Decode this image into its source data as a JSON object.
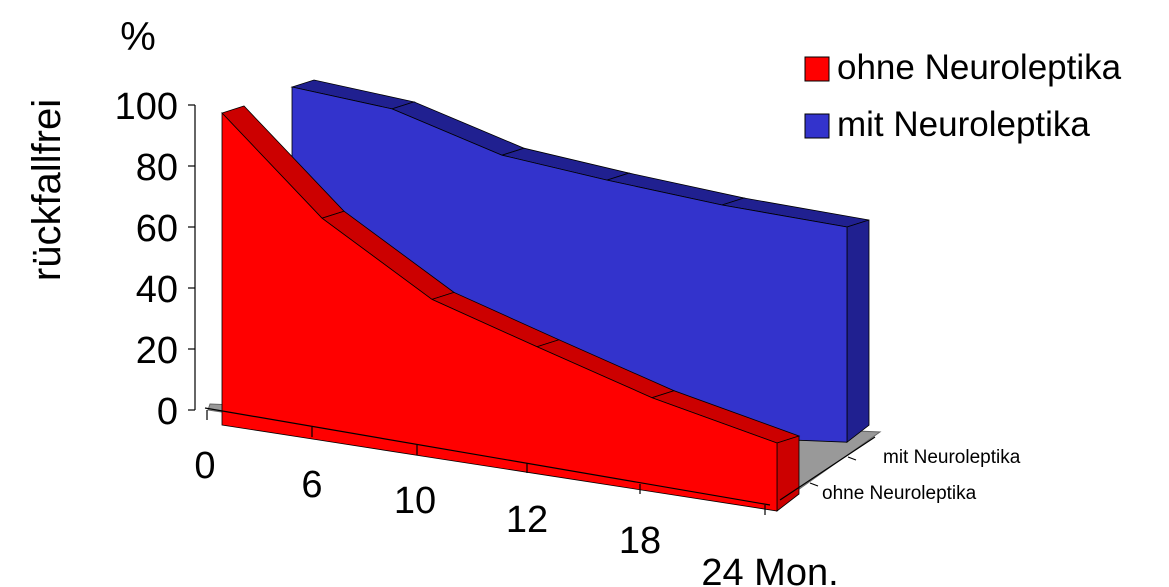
{
  "chart_data": {
    "type": "area",
    "title": "",
    "ylabel": "rückfallfrei",
    "yunit": "%",
    "xlabel": "",
    "categories": [
      "0",
      "6",
      "10",
      "12",
      "18",
      "24 Mon."
    ],
    "ylim": [
      0,
      100
    ],
    "yticks": [
      "0",
      "20",
      "40",
      "60",
      "80",
      "100"
    ],
    "grid": false,
    "legend_position": "top-right",
    "three_d": true,
    "series": [
      {
        "name": "ohne Neuroleptika",
        "values": [
          100,
          67,
          42,
          28,
          13,
          0
        ],
        "color": "#ff0000",
        "side_color": "#cc0000"
      },
      {
        "name": "mit Neuroleptika",
        "values": [
          100,
          93,
          78,
          70,
          62,
          55
        ],
        "color": "#3333cc",
        "side_color": "#202090"
      }
    ],
    "depth_labels": [
      "ohne Neuroleptika",
      "mit Neuroleptika"
    ],
    "floor_color": "#999999"
  }
}
